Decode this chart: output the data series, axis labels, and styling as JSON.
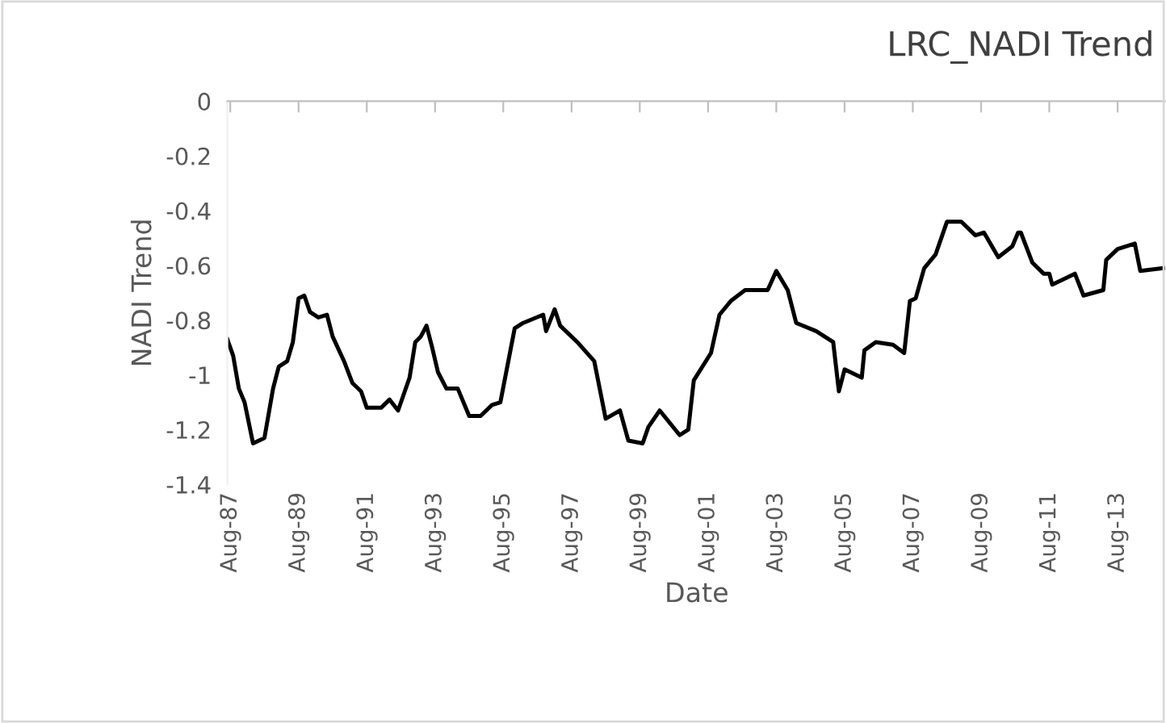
{
  "chart_data": {
    "type": "line",
    "title": "LRC_NADI Trend",
    "xlabel": "Date",
    "ylabel": "NADI Trend",
    "x": [
      "1987-07",
      "1987-09",
      "1987-11",
      "1988-01",
      "1988-04",
      "1988-08",
      "1988-11",
      "1989-01",
      "1989-04",
      "1989-06",
      "1989-08",
      "1989-10",
      "1989-12",
      "1990-03",
      "1990-06",
      "1990-08",
      "1990-12",
      "1991-03",
      "1991-06",
      "1991-08",
      "1992-01",
      "1992-04",
      "1992-07",
      "1992-11",
      "1993-01",
      "1993-03",
      "1993-05",
      "1993-07",
      "1993-09",
      "1993-12",
      "1994-04",
      "1994-08",
      "1994-12",
      "1995-04",
      "1995-07",
      "1995-12",
      "1996-03",
      "1996-10",
      "1996-11",
      "1997-02",
      "1997-04",
      "1997-10",
      "1998-04",
      "1998-08",
      "1999-01",
      "1999-04",
      "1999-09",
      "1999-11",
      "2000-03",
      "2000-10",
      "2001-01",
      "2001-03",
      "2001-09",
      "2001-12",
      "2002-04",
      "2002-09",
      "2003-05",
      "2003-08",
      "2003-12",
      "2004-03",
      "2004-10",
      "2005-04",
      "2005-06",
      "2005-08",
      "2006-02",
      "2006-03",
      "2006-07",
      "2007-01",
      "2007-05",
      "2007-07",
      "2007-09",
      "2007-12",
      "2008-04",
      "2008-08",
      "2009-01",
      "2009-06",
      "2009-09",
      "2010-02",
      "2010-07",
      "2010-09",
      "2010-10",
      "2011-02",
      "2011-06",
      "2011-08",
      "2011-09",
      "2012-01",
      "2012-05",
      "2012-08",
      "2013-03",
      "2013-04",
      "2013-08",
      "2014-02",
      "2014-04",
      "2014-12"
    ],
    "series": [
      {
        "color": "#000000",
        "values": [
          -0.87,
          -0.93,
          -1.05,
          -1.1,
          -1.25,
          -1.23,
          -1.05,
          -0.97,
          -0.95,
          -0.88,
          -0.72,
          -0.71,
          -0.77,
          -0.79,
          -0.78,
          -0.86,
          -0.95,
          -1.03,
          -1.06,
          -1.12,
          -1.12,
          -1.09,
          -1.13,
          -1.01,
          -0.88,
          -0.86,
          -0.82,
          -0.9,
          -0.99,
          -1.05,
          -1.05,
          -1.15,
          -1.15,
          -1.11,
          -1.1,
          -0.83,
          -0.81,
          -0.78,
          -0.84,
          -0.76,
          -0.82,
          -0.88,
          -0.95,
          -1.16,
          -1.13,
          -1.24,
          -1.25,
          -1.19,
          -1.13,
          -1.22,
          -1.2,
          -1.02,
          -0.92,
          -0.78,
          -0.73,
          -0.69,
          -0.69,
          -0.62,
          -0.69,
          -0.81,
          -0.84,
          -0.88,
          -1.06,
          -0.98,
          -1.01,
          -0.91,
          -0.88,
          -0.89,
          -0.92,
          -0.73,
          -0.72,
          -0.61,
          -0.56,
          -0.44,
          -0.44,
          -0.49,
          -0.48,
          -0.57,
          -0.53,
          -0.48,
          -0.48,
          -0.59,
          -0.63,
          -0.63,
          -0.67,
          -0.65,
          -0.63,
          -0.71,
          -0.69,
          -0.58,
          -0.54,
          -0.52,
          -0.62,
          -0.61
        ]
      }
    ],
    "xlim": [
      "1987-07",
      "2015-01"
    ],
    "xticks": [
      {
        "value": "1987-08",
        "label": "Aug-87"
      },
      {
        "value": "1989-08",
        "label": "Aug-89"
      },
      {
        "value": "1991-08",
        "label": "Aug-91"
      },
      {
        "value": "1993-08",
        "label": "Aug-93"
      },
      {
        "value": "1995-08",
        "label": "Aug-95"
      },
      {
        "value": "1997-08",
        "label": "Aug-97"
      },
      {
        "value": "1999-08",
        "label": "Aug-99"
      },
      {
        "value": "2001-08",
        "label": "Aug-01"
      },
      {
        "value": "2003-08",
        "label": "Aug-03"
      },
      {
        "value": "2005-08",
        "label": "Aug-05"
      },
      {
        "value": "2007-08",
        "label": "Aug-07"
      },
      {
        "value": "2009-08",
        "label": "Aug-09"
      },
      {
        "value": "2011-08",
        "label": "Aug-11"
      },
      {
        "value": "2013-08",
        "label": "Aug-13"
      }
    ],
    "ylim": [
      -1.4,
      0
    ],
    "yticks": [
      0,
      -0.2,
      -0.4,
      -0.6,
      -0.8,
      -1,
      -1.2,
      -1.4
    ],
    "grid": false,
    "marker": "none",
    "line_style": "solid"
  }
}
